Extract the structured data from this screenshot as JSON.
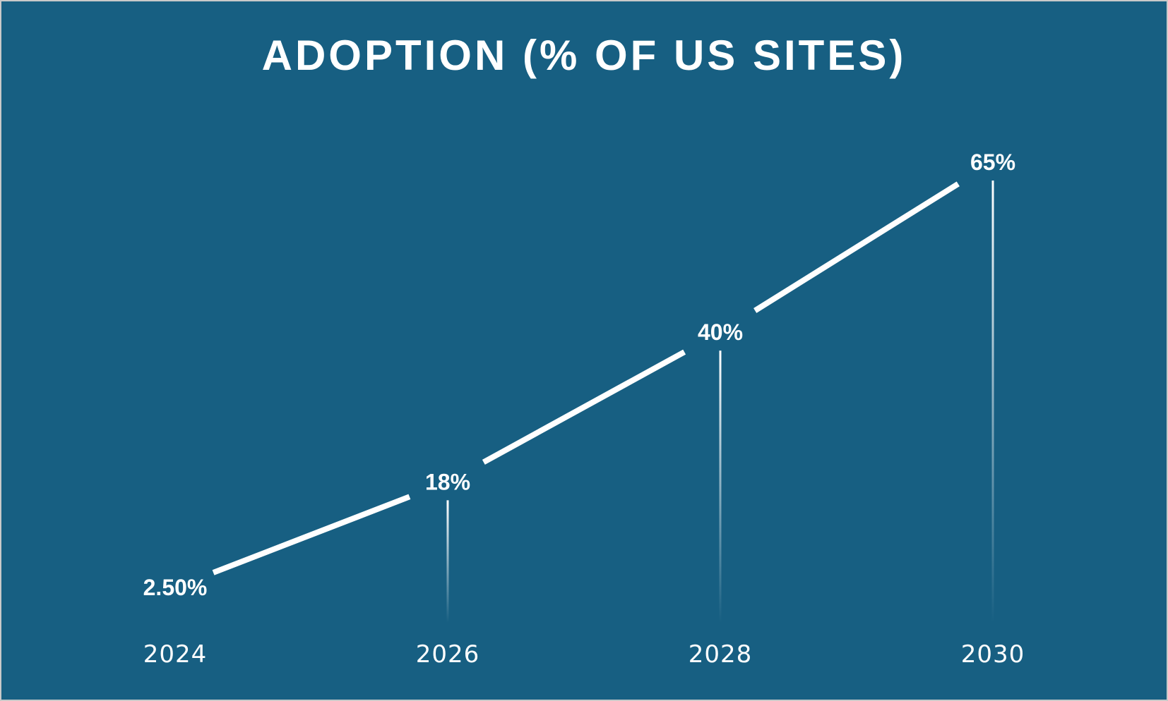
{
  "chart_data": {
    "type": "line",
    "title": "ADOPTION (% OF US SITES)",
    "xlabel": "",
    "ylabel": "",
    "categories": [
      "2024",
      "2026",
      "2028",
      "2030"
    ],
    "values": [
      2.5,
      18,
      40,
      65
    ],
    "data_labels": [
      "2.50%",
      "18%",
      "40%",
      "65%"
    ],
    "ylim": [
      0,
      65
    ],
    "grid": false,
    "legend": "none",
    "drop_lines": true
  },
  "colors": {
    "background": "#175f82",
    "line": "#ffffff",
    "text": "#ffffff",
    "border": "#c9c9c9"
  }
}
